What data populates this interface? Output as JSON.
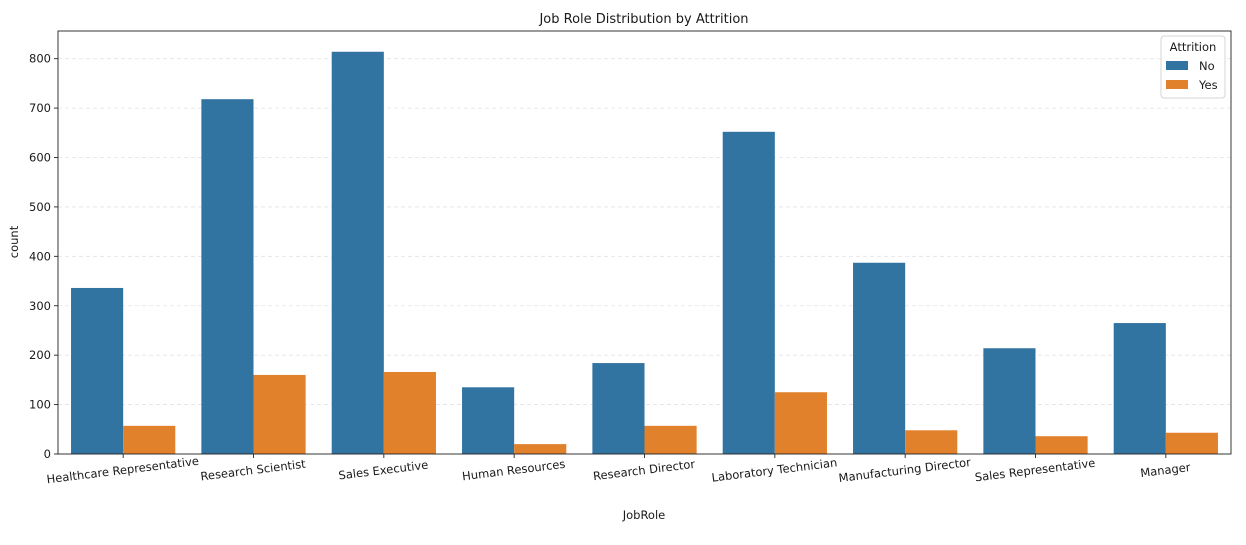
{
  "chart_data": {
    "type": "bar",
    "title": "Job Role Distribution by Attrition",
    "xlabel": "JobRole",
    "ylabel": "count",
    "categories": [
      "Healthcare Representative",
      "Research Scientist",
      "Sales Executive",
      "Human Resources",
      "Research Director",
      "Laboratory Technician",
      "Manufacturing Director",
      "Sales Representative",
      "Manager"
    ],
    "series": [
      {
        "name": "No",
        "color": "#3274a1",
        "values": [
          336,
          718,
          814,
          135,
          184,
          652,
          387,
          214,
          265
        ]
      },
      {
        "name": "Yes",
        "color": "#e1812c",
        "values": [
          57,
          160,
          166,
          20,
          57,
          125,
          48,
          36,
          43
        ]
      }
    ],
    "ylim": [
      0,
      856
    ],
    "yticks": [
      0,
      100,
      200,
      300,
      400,
      500,
      600,
      700,
      800
    ],
    "grid": "horizontal dashed",
    "legend": {
      "title": "Attrition",
      "position": "top-right"
    }
  }
}
